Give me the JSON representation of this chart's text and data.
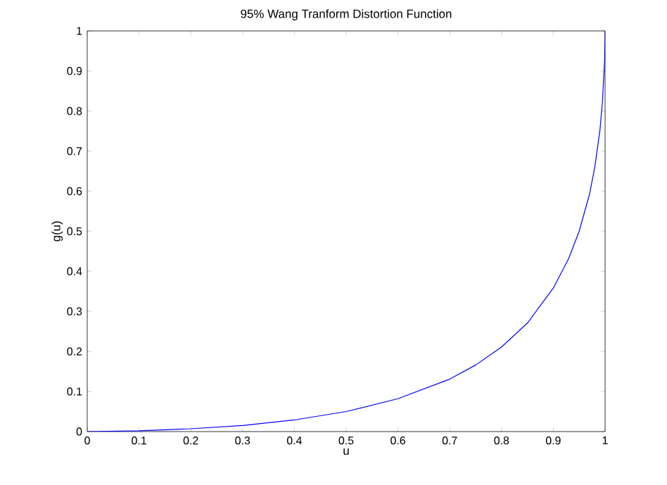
{
  "chart_data": {
    "type": "line",
    "title": "95% Wang Tranform Distortion Function",
    "xlabel": "u",
    "ylabel": "g(u)",
    "x": [
      0,
      0.1,
      0.2,
      0.3,
      0.4,
      0.5,
      0.6,
      0.7,
      0.75,
      0.8,
      0.85,
      0.9,
      0.93,
      0.95,
      0.97,
      0.98,
      0.99,
      0.995,
      0.999,
      1
    ],
    "series": [
      {
        "color": "#0000ff",
        "values": [
          0,
          0.002,
          0.007,
          0.015,
          0.029,
          0.05,
          0.082,
          0.131,
          0.166,
          0.211,
          0.271,
          0.358,
          0.433,
          0.5,
          0.593,
          0.659,
          0.752,
          0.824,
          0.926,
          1
        ]
      }
    ],
    "xlim": [
      0,
      1
    ],
    "ylim": [
      0,
      1
    ],
    "xticks": [
      0,
      0.1,
      0.2,
      0.3,
      0.4,
      0.5,
      0.6,
      0.7,
      0.8,
      0.9,
      1
    ],
    "yticks": [
      0,
      0.1,
      0.2,
      0.3,
      0.4,
      0.5,
      0.6,
      0.7,
      0.8,
      0.9,
      1
    ],
    "grid": false
  }
}
